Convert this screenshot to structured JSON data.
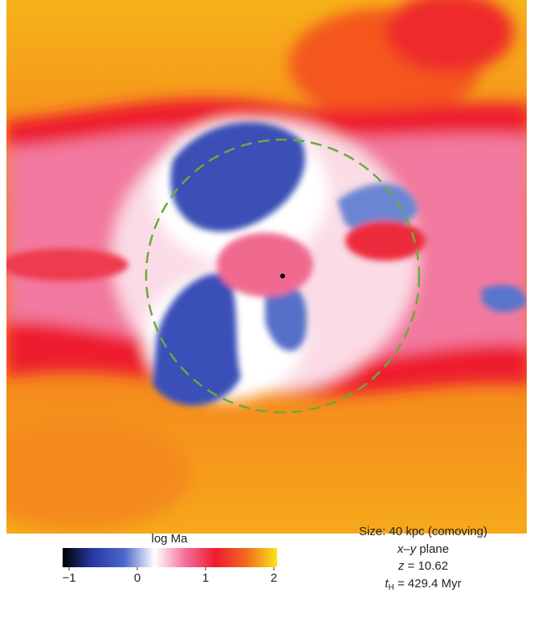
{
  "colorbar": {
    "label": "log Ma",
    "lim": [
      -1,
      2
    ],
    "ticks": [
      {
        "value": -1,
        "label": "−1"
      },
      0,
      1,
      2
    ],
    "colors": [
      "#000000",
      "#2a3aa8",
      "#4a66c8",
      "#ffffff",
      "#f2709a",
      "#ee1b2e",
      "#f26a1e",
      "#f6e61a"
    ]
  },
  "annotations": {
    "size": "Size: 40 kpc (comoving)",
    "plane": {
      "italic": "x–y",
      "text": " plane"
    },
    "redshift": {
      "italic": "z",
      "text": " = 10.62"
    },
    "time": {
      "italic": "t",
      "subscript": "H",
      "text": " = 429.4 Myr"
    }
  }
}
